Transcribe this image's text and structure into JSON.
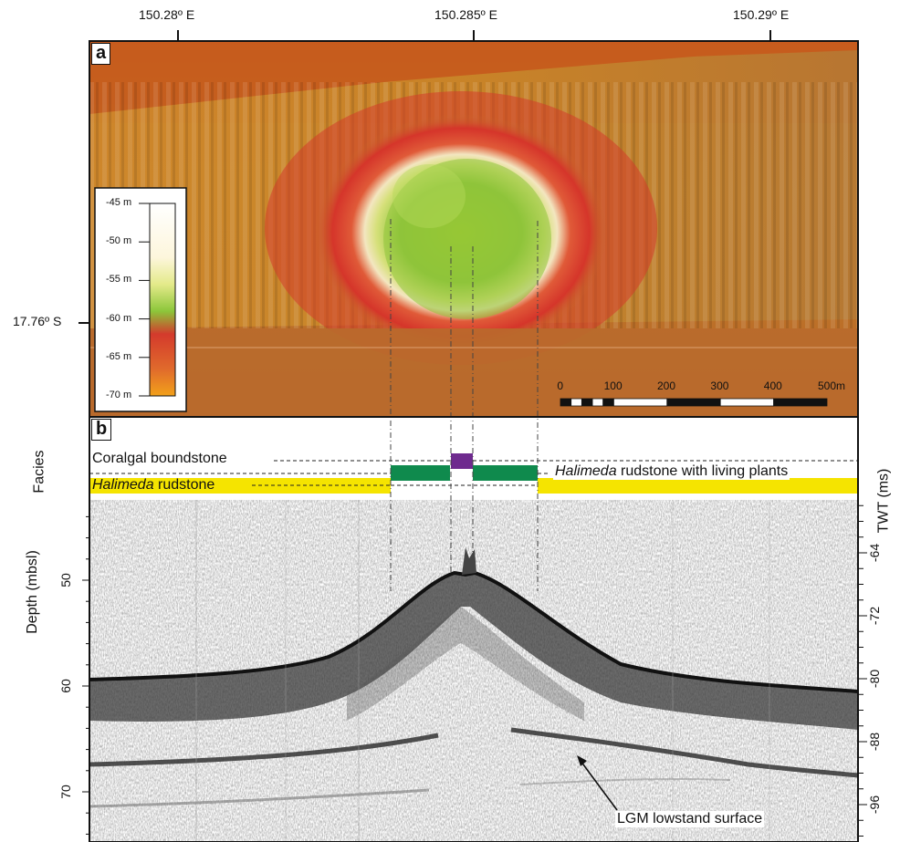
{
  "panel_a": {
    "letter": "a",
    "lon_ticks": [
      "150.28º E",
      "150.285º E",
      "150.29º E"
    ],
    "lat_tick": "17.76º S",
    "legend": {
      "labels": [
        "-45 m",
        "-50 m",
        "-55 m",
        "-60 m",
        "-65 m",
        "-70 m"
      ],
      "values": [
        -45,
        -50,
        -55,
        -60,
        -65,
        -70
      ],
      "colors": [
        "#ffffff",
        "#fbf3cf",
        "#9ccf2c",
        "#d9342a",
        "#e56a2c",
        "#f0a21a"
      ]
    },
    "scale_bar": {
      "labels": [
        "0",
        "100",
        "200",
        "300",
        "400",
        "500m"
      ],
      "values": [
        0,
        100,
        200,
        300,
        400,
        500
      ]
    }
  },
  "panel_b": {
    "letter": "b",
    "facies_axis_label": "Facies",
    "facies": {
      "coralgal": "Coralgal boundstone",
      "halimeda": "Halimeda",
      "halimeda_suffix": " rudstone",
      "halimeda_living_suffix": " rudstone with living plants",
      "colors": {
        "coralgal": "#6e2a8e",
        "green": "#0f8a4d",
        "yellow": "#f5e400"
      }
    },
    "depth_axis": {
      "label": "Depth (mbsl)",
      "ticks": [
        "50",
        "60",
        "70"
      ]
    },
    "twt_axis": {
      "label": "TWT (ms)",
      "ticks": [
        "-64",
        "-72",
        "-80",
        "-88",
        "-96"
      ]
    },
    "annotation": "LGM lowstand surface"
  }
}
